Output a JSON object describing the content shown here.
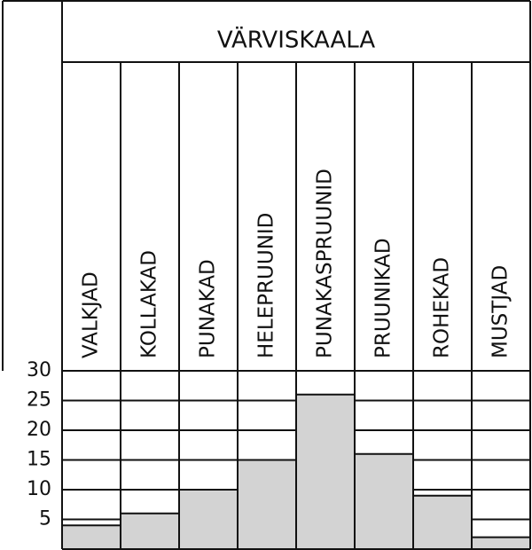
{
  "chart_data": {
    "type": "bar",
    "title": "VÄRVISKAALA",
    "categories": [
      "VALKJAD",
      "KOLLAKAD",
      "PUNAKAD",
      "HELEPRUUNID",
      "PUNAKASPRUUNID",
      "PRUUNIKAD",
      "ROHEKAD",
      "MUSTJAD"
    ],
    "values": [
      4,
      6,
      10,
      15,
      26,
      16,
      9,
      2
    ],
    "color": "#d3d3d3",
    "ylim": [
      0,
      30
    ],
    "yticks": [
      5,
      10,
      15,
      20,
      25,
      30
    ],
    "grid": true
  }
}
